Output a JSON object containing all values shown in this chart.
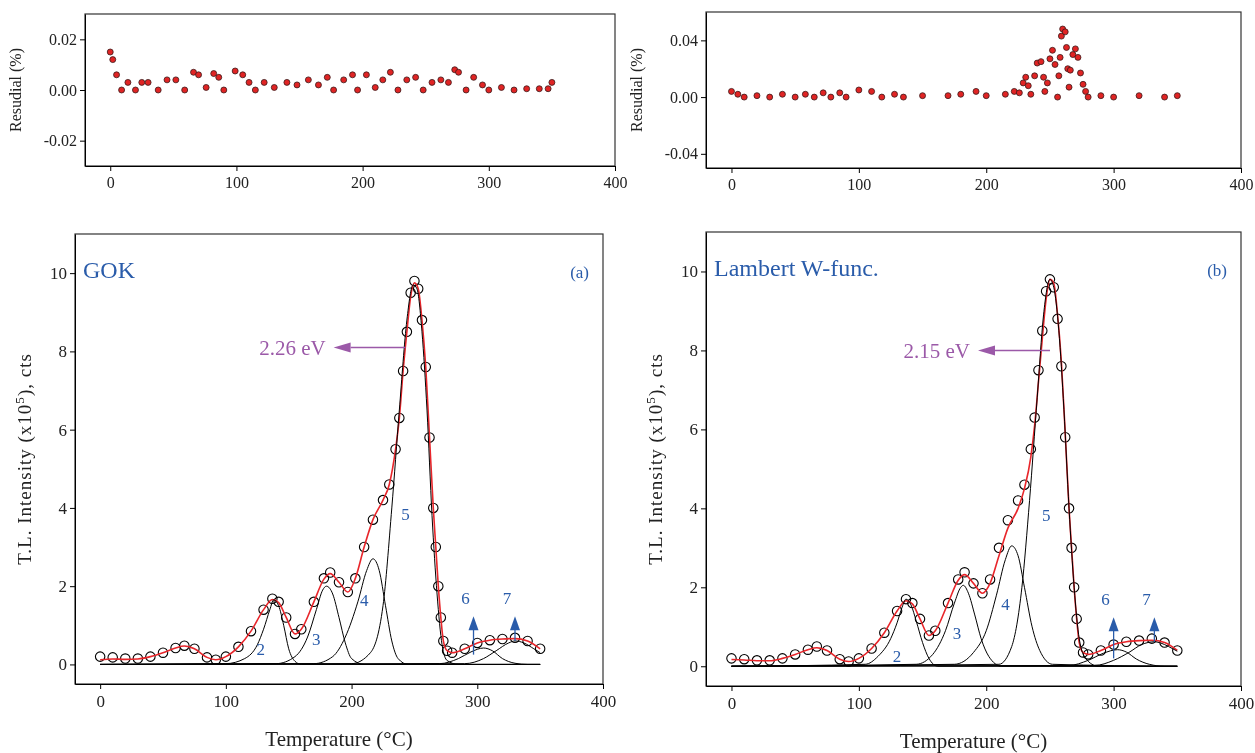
{
  "chart_data": [
    {
      "type": "scatter",
      "ylabel": "Resudial (%)",
      "xlim": [
        -20,
        400
      ],
      "xticks": [
        0,
        100,
        200,
        300,
        400
      ],
      "ylim": [
        -0.03,
        0.03
      ],
      "yticks": [
        {
          "value": -0.02,
          "label": "-0.02"
        },
        {
          "value": 0,
          "label": "0.00"
        },
        {
          "value": 0.02,
          "label": "0.02"
        }
      ],
      "marker": "circle",
      "grid": false,
      "series": [
        {
          "color": "#e02424",
          "x": [
            0,
            2,
            5,
            9,
            14,
            20,
            25,
            30,
            38,
            45,
            52,
            59,
            66,
            70,
            76,
            82,
            86,
            90,
            99,
            105,
            110,
            115,
            122,
            130,
            140,
            148,
            157,
            165,
            172,
            177,
            185,
            192,
            196,
            203,
            210,
            216,
            222,
            228,
            235,
            242,
            248,
            255,
            262,
            268,
            273,
            276,
            282,
            288,
            295,
            300,
            310,
            320,
            330,
            340,
            347,
            350
          ],
          "values": [
            0.015,
            0.012,
            0.006,
            0,
            0.003,
            0,
            0.003,
            0.003,
            0,
            0.004,
            0.004,
            0,
            0.007,
            0.006,
            0.001,
            0.0065,
            0.005,
            0,
            0.0075,
            0.006,
            0.003,
            0,
            0.003,
            0.001,
            0.003,
            0.002,
            0.004,
            0.002,
            0.005,
            0,
            0.004,
            0.006,
            0,
            0.006,
            0.001,
            0.004,
            0.007,
            0,
            0.004,
            0.005,
            0,
            0.003,
            0.004,
            0.003,
            0.008,
            0.007,
            0,
            0.005,
            0.002,
            0,
            0.001,
            0,
            0.0005,
            0.0005,
            0.0005,
            0.003
          ]
        }
      ]
    },
    {
      "type": "scatter",
      "ylabel": "Resudial (%)",
      "xlim": [
        -20,
        400
      ],
      "xticks": [
        0,
        100,
        200,
        300,
        400
      ],
      "ylim": [
        -0.05,
        0.06
      ],
      "yticks": [
        {
          "value": -0.04,
          "label": "-0.04"
        },
        {
          "value": 0,
          "label": "0.00"
        },
        {
          "value": 0.04,
          "label": "0.04"
        }
      ],
      "marker": "circle",
      "grid": false,
      "series": [
        {
          "color": "#e02424",
          "x": [
            0,
            5,
            10,
            20,
            30,
            40,
            50,
            58,
            65,
            72,
            78,
            85,
            90,
            100,
            110,
            118,
            128,
            135,
            150,
            170,
            180,
            192,
            200,
            215,
            222,
            226,
            229,
            231,
            233,
            235,
            238,
            240,
            243,
            245,
            246,
            248,
            250,
            252,
            254,
            256,
            257,
            258,
            259,
            260,
            262,
            263,
            264,
            265,
            266,
            268,
            270,
            272,
            274,
            276,
            278,
            280,
            290,
            300,
            320,
            340,
            350
          ],
          "values": [
            0.004,
            0.002,
            0,
            0.001,
            0,
            0.002,
            0,
            0.002,
            0,
            0.003,
            0,
            0.003,
            0,
            0.005,
            0.004,
            0,
            0.002,
            0,
            0.001,
            0.001,
            0.002,
            0.004,
            0.001,
            0.002,
            0.004,
            0.003,
            0.01,
            0.014,
            0.008,
            0.002,
            0.015,
            0.024,
            0.025,
            0.014,
            0.004,
            0.01,
            0.027,
            0.033,
            0.023,
            0,
            0.015,
            0.028,
            0.043,
            0.048,
            0.046,
            0.035,
            0.02,
            0.007,
            0.019,
            0.03,
            0.034,
            0.028,
            0.017,
            0.009,
            0.004,
            0,
            0.001,
            0,
            0.001,
            0,
            0.001
          ]
        }
      ]
    },
    {
      "type": "line",
      "xlabel": "Temperature (°C)",
      "ylabel": "T.L. Intensity (x10$^{5}$), cts",
      "xlim": [
        -20,
        400
      ],
      "xticks": [
        0,
        100,
        200,
        300,
        400
      ],
      "ylim": [
        -0.5,
        11
      ],
      "yticks": [
        0,
        2,
        4,
        6,
        8,
        10
      ],
      "grid": false,
      "annotations": [
        "GOK",
        "(a)",
        {
          "text": "2.26 eV",
          "x": 243,
          "y": 8.1
        },
        "2",
        "3",
        "4",
        "5",
        {
          "text": "6",
          "x": 297,
          "y": 0.25
        },
        {
          "text": "7",
          "x": 330,
          "y": 0.6
        }
      ],
      "series": [
        {
          "type": "scatter",
          "marker": "circle",
          "color": "#000000",
          "x": [
            0,
            10,
            20,
            30,
            40,
            50,
            60,
            67,
            75,
            85,
            92,
            100,
            110,
            120,
            130,
            137,
            142,
            148,
            155,
            160,
            170,
            178,
            183,
            190,
            197,
            203,
            210,
            217,
            225,
            230,
            235,
            238,
            241,
            244,
            247,
            250,
            253,
            256,
            259,
            262,
            265,
            267,
            269,
            271,
            273,
            276,
            280,
            290,
            300,
            310,
            320,
            330,
            340,
            350
          ],
          "values": [
            0.2,
            0.18,
            0.15,
            0.15,
            0.2,
            0.3,
            0.42,
            0.48,
            0.4,
            0.18,
            0.12,
            0.2,
            0.45,
            0.85,
            1.4,
            1.68,
            1.6,
            1.2,
            0.78,
            0.9,
            1.6,
            2.2,
            2.35,
            2.1,
            1.85,
            2.2,
            3,
            3.7,
            4.2,
            4.6,
            5.5,
            6.3,
            7.5,
            8.5,
            9.5,
            9.8,
            9.6,
            8.8,
            7.6,
            5.8,
            4,
            3,
            2,
            1.2,
            0.6,
            0.35,
            0.3,
            0.4,
            0.55,
            0.62,
            0.65,
            0.68,
            0.6,
            0.4
          ]
        },
        {
          "type": "line",
          "color": "#e8262b",
          "x": [
            0,
            10,
            20,
            30,
            40,
            50,
            60,
            67,
            75,
            85,
            92,
            100,
            110,
            120,
            130,
            137,
            142,
            148,
            155,
            160,
            170,
            178,
            183,
            190,
            197,
            203,
            210,
            217,
            225,
            230,
            235,
            238,
            241,
            244,
            247,
            250,
            253,
            256,
            259,
            262,
            265,
            267,
            269,
            271,
            273,
            276,
            280,
            290,
            300,
            310,
            320,
            330,
            340,
            350
          ],
          "values": [
            0.12,
            0.14,
            0.13,
            0.14,
            0.2,
            0.3,
            0.42,
            0.47,
            0.4,
            0.18,
            0.12,
            0.2,
            0.45,
            0.85,
            1.4,
            1.66,
            1.58,
            1.2,
            0.78,
            0.9,
            1.6,
            2.18,
            2.32,
            2.1,
            1.85,
            2.2,
            3,
            3.7,
            4.2,
            4.6,
            5.5,
            6.3,
            7.5,
            8.5,
            9.4,
            9.75,
            9.6,
            8.8,
            7.6,
            5.8,
            4,
            3,
            2,
            1.2,
            0.6,
            0.35,
            0.3,
            0.4,
            0.55,
            0.62,
            0.65,
            0.66,
            0.6,
            0.4
          ]
        },
        {
          "type": "line",
          "color": "#000000",
          "x": [
            0,
            100,
            115,
            125,
            130,
            135,
            138,
            142,
            146,
            150,
            155,
            160,
            350
          ],
          "values": [
            0,
            0.02,
            0.15,
            0.5,
            0.9,
            1.4,
            1.65,
            1.5,
            1,
            0.4,
            0.08,
            0,
            0
          ]
        },
        {
          "type": "line",
          "color": "#000000",
          "x": [
            0,
            140,
            155,
            165,
            172,
            177,
            180,
            185,
            190,
            195,
            200,
            210,
            350
          ],
          "values": [
            0,
            0.02,
            0.2,
            0.7,
            1.4,
            1.9,
            2,
            1.8,
            1.2,
            0.55,
            0.15,
            0,
            0
          ]
        },
        {
          "type": "line",
          "color": "#000000",
          "x": [
            0,
            170,
            185,
            195,
            205,
            212,
            217,
            222,
            227,
            232,
            237,
            245,
            350
          ],
          "values": [
            0,
            0.02,
            0.2,
            0.7,
            1.6,
            2.4,
            2.7,
            2.4,
            1.5,
            0.6,
            0.15,
            0,
            0
          ]
        },
        {
          "type": "line",
          "color": "#000000",
          "x": [
            0,
            200,
            215,
            225,
            232,
            238,
            244,
            249,
            252,
            256,
            260,
            264,
            268,
            272,
            276,
            285,
            350
          ],
          "values": [
            0,
            0.02,
            0.3,
            1.5,
            4,
            6.5,
            8.8,
            9.7,
            9.6,
            8.5,
            6.5,
            3.8,
            1.8,
            0.5,
            0.1,
            0,
            0
          ]
        },
        {
          "type": "line",
          "color": "#000000",
          "x": [
            0,
            270,
            285,
            295,
            305,
            312,
            320,
            330,
            340,
            350
          ],
          "values": [
            0,
            0.02,
            0.15,
            0.32,
            0.42,
            0.35,
            0.15,
            0.03,
            0,
            0
          ]
        },
        {
          "type": "line",
          "color": "#000000",
          "x": [
            0,
            290,
            305,
            315,
            325,
            330,
            337,
            345,
            350
          ],
          "values": [
            0,
            0.02,
            0.15,
            0.35,
            0.55,
            0.6,
            0.55,
            0.4,
            0.3
          ]
        }
      ]
    },
    {
      "type": "line",
      "xlabel": "Temperature (°C)",
      "ylabel": "T.L. Intensity (x10$^{5}$), cts",
      "xlim": [
        -20,
        400
      ],
      "xticks": [
        0,
        100,
        200,
        300,
        400
      ],
      "ylim": [
        -0.5,
        11
      ],
      "yticks": [
        0,
        2,
        4,
        6,
        8,
        10
      ],
      "grid": false,
      "annotations": [
        "Lambert W-func.",
        "(b)",
        "2.15 eV",
        "2",
        "3",
        "4",
        "5",
        {
          "text": "6",
          "x": 300,
          "y": 0.2
        },
        {
          "text": "7",
          "x": 332,
          "y": 0.62
        }
      ],
      "series": [
        {
          "type": "scatter",
          "marker": "circle",
          "color": "#000000",
          "x": [
            0,
            10,
            20,
            30,
            40,
            50,
            60,
            67,
            75,
            85,
            92,
            100,
            110,
            120,
            130,
            137,
            142,
            148,
            155,
            160,
            170,
            178,
            183,
            190,
            197,
            203,
            210,
            217,
            225,
            230,
            235,
            238,
            241,
            244,
            247,
            250,
            253,
            256,
            259,
            262,
            265,
            267,
            269,
            271,
            273,
            276,
            280,
            290,
            300,
            310,
            320,
            330,
            340,
            350
          ],
          "values": [
            0.2,
            0.18,
            0.15,
            0.15,
            0.2,
            0.3,
            0.42,
            0.5,
            0.4,
            0.18,
            0.12,
            0.2,
            0.45,
            0.85,
            1.4,
            1.7,
            1.6,
            1.2,
            0.78,
            0.9,
            1.6,
            2.2,
            2.38,
            2.1,
            1.85,
            2.2,
            3,
            3.7,
            4.2,
            4.6,
            5.5,
            6.3,
            7.5,
            8.5,
            9.5,
            9.8,
            9.6,
            8.8,
            7.6,
            5.8,
            4,
            3,
            2,
            1.2,
            0.6,
            0.35,
            0.3,
            0.4,
            0.55,
            0.62,
            0.65,
            0.7,
            0.6,
            0.4
          ]
        },
        {
          "type": "line",
          "color": "#e8262b",
          "x": [
            0,
            10,
            20,
            30,
            40,
            50,
            60,
            67,
            75,
            85,
            92,
            100,
            110,
            120,
            130,
            137,
            142,
            148,
            155,
            160,
            170,
            178,
            183,
            190,
            197,
            203,
            210,
            217,
            225,
            230,
            235,
            238,
            241,
            244,
            247,
            250,
            253,
            256,
            259,
            262,
            265,
            267,
            269,
            271,
            273,
            276,
            280,
            290,
            300,
            310,
            320,
            330,
            340,
            350
          ],
          "values": [
            0.17,
            0.16,
            0.14,
            0.14,
            0.2,
            0.3,
            0.42,
            0.47,
            0.4,
            0.18,
            0.12,
            0.2,
            0.45,
            0.85,
            1.4,
            1.66,
            1.58,
            1.2,
            0.78,
            0.9,
            1.6,
            2.18,
            2.32,
            2.1,
            1.85,
            2.1,
            2.8,
            3.5,
            4,
            4.5,
            5.3,
            6.1,
            7.2,
            8.3,
            9.3,
            9.8,
            9.7,
            8.9,
            7.7,
            5.9,
            4,
            3,
            2,
            1.2,
            0.6,
            0.35,
            0.3,
            0.4,
            0.55,
            0.62,
            0.65,
            0.66,
            0.6,
            0.4
          ]
        },
        {
          "type": "line",
          "color": "#000000",
          "x": [
            0,
            105,
            115,
            125,
            130,
            134,
            137,
            141,
            145,
            150,
            155,
            162,
            350
          ],
          "values": [
            0,
            0.05,
            0.25,
            0.7,
            1.1,
            1.5,
            1.7,
            1.55,
            1.15,
            0.6,
            0.2,
            0,
            0
          ]
        },
        {
          "type": "line",
          "color": "#000000",
          "x": [
            0,
            145,
            158,
            168,
            175,
            180,
            182,
            186,
            191,
            196,
            202,
            212,
            350
          ],
          "values": [
            0,
            0.05,
            0.3,
            0.9,
            1.6,
            2,
            2.05,
            1.85,
            1.3,
            0.7,
            0.25,
            0,
            0
          ]
        },
        {
          "type": "line",
          "color": "#000000",
          "x": [
            0,
            175,
            190,
            200,
            208,
            215,
            220,
            225,
            230,
            236,
            242,
            252,
            350
          ],
          "values": [
            0,
            0.05,
            0.35,
            0.9,
            1.8,
            2.7,
            3.05,
            2.8,
            2,
            1,
            0.4,
            0.05,
            0
          ]
        },
        {
          "type": "line",
          "color": "#000000",
          "x": [
            0,
            210,
            220,
            228,
            234,
            240,
            245,
            250,
            253,
            257,
            261,
            265,
            269,
            273,
            278,
            288,
            350
          ],
          "values": [
            0,
            0.05,
            0.5,
            2,
            4.2,
            6.8,
            8.9,
            9.8,
            9.6,
            8.5,
            6.5,
            4,
            2,
            0.7,
            0.2,
            0,
            0
          ]
        },
        {
          "type": "line",
          "color": "#000000",
          "x": [
            0,
            265,
            280,
            292,
            303,
            310,
            318,
            328,
            340,
            350
          ],
          "values": [
            0,
            0.02,
            0.15,
            0.33,
            0.42,
            0.36,
            0.18,
            0.05,
            0,
            0
          ]
        },
        {
          "type": "line",
          "color": "#000000",
          "x": [
            0,
            285,
            300,
            312,
            322,
            332,
            340,
            346,
            350
          ],
          "values": [
            0,
            0.02,
            0.15,
            0.35,
            0.55,
            0.62,
            0.55,
            0.45,
            0.38
          ]
        }
      ]
    }
  ]
}
